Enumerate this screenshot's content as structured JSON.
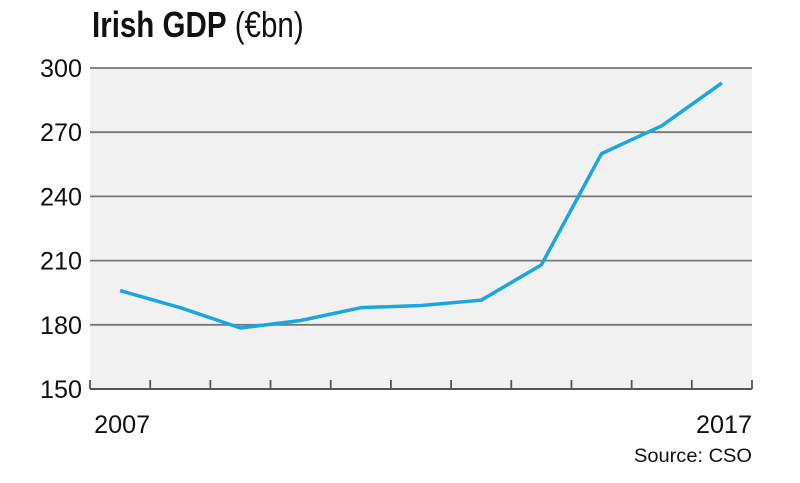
{
  "chart_data": {
    "type": "line",
    "title": "Irish GDP",
    "title_unit": "(€bn)",
    "x": [
      2007,
      2008,
      2009,
      2010,
      2011,
      2012,
      2013,
      2014,
      2015,
      2016,
      2017
    ],
    "x_tick_labels": [
      "2007",
      "2017"
    ],
    "series": [
      {
        "name": "Irish GDP",
        "values": [
          196,
          188,
          178.5,
          182,
          188,
          189,
          191.5,
          208,
          260,
          273,
          293
        ],
        "color": "#1aa6df"
      }
    ],
    "y_ticks": [
      150,
      180,
      210,
      240,
      270,
      300
    ],
    "ylim": [
      150,
      300
    ],
    "grid": true,
    "background": "#f1f1f1",
    "source": "Source: CSO"
  }
}
